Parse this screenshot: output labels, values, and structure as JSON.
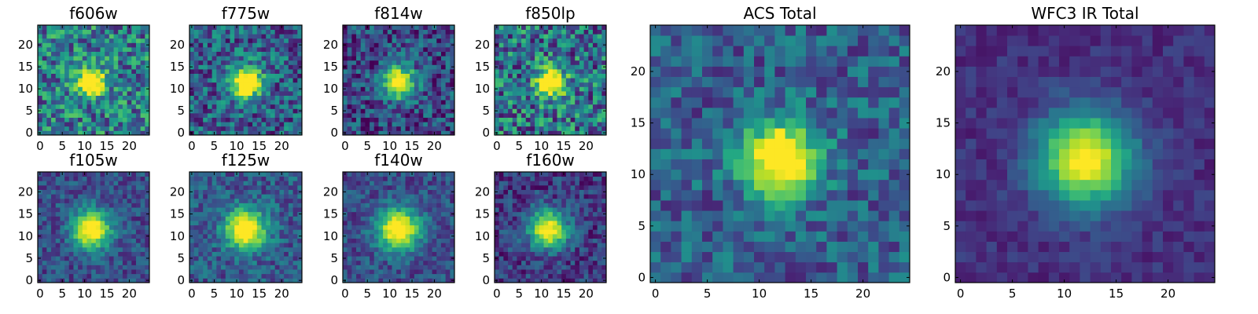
{
  "chart_data": [
    {
      "type": "heatmap",
      "title": "f606w",
      "xlim": [
        -0.5,
        24.5
      ],
      "ylim": [
        -0.5,
        24.5
      ],
      "xticks": [
        0,
        5,
        10,
        15,
        20
      ],
      "yticks": [
        0,
        5,
        10,
        15,
        20
      ],
      "xtick_labels": [
        "0",
        "5",
        "10",
        "15",
        "20"
      ],
      "ytick_labels": [
        "0",
        "5",
        "10",
        "15",
        "20"
      ],
      "colormap": "viridis",
      "peak_center": [
        11.5,
        11.5
      ],
      "peak_sigma": 2.2,
      "background_level": 0.42,
      "noise_level": 0.32
    },
    {
      "type": "heatmap",
      "title": "f775w",
      "xlim": [
        -0.5,
        24.5
      ],
      "ylim": [
        -0.5,
        24.5
      ],
      "xticks": [
        0,
        5,
        10,
        15,
        20
      ],
      "yticks": [
        0,
        5,
        10,
        15,
        20
      ],
      "xtick_labels": [
        "0",
        "5",
        "10",
        "15",
        "20"
      ],
      "ytick_labels": [
        "0",
        "5",
        "10",
        "15",
        "20"
      ],
      "colormap": "viridis",
      "peak_center": [
        12,
        11.5
      ],
      "peak_sigma": 2.6,
      "background_level": 0.3,
      "noise_level": 0.28
    },
    {
      "type": "heatmap",
      "title": "f814w",
      "xlim": [
        -0.5,
        24.5
      ],
      "ylim": [
        -0.5,
        24.5
      ],
      "xticks": [
        0,
        5,
        10,
        15,
        20
      ],
      "yticks": [
        0,
        5,
        10,
        15,
        20
      ],
      "xtick_labels": [
        "0",
        "5",
        "10",
        "15",
        "20"
      ],
      "ytick_labels": [
        "0",
        "5",
        "10",
        "15",
        "20"
      ],
      "colormap": "viridis",
      "peak_center": [
        12,
        11.5
      ],
      "peak_sigma": 2.6,
      "background_level": 0.22,
      "noise_level": 0.26
    },
    {
      "type": "heatmap",
      "title": "f850lp",
      "xlim": [
        -0.5,
        24.5
      ],
      "ylim": [
        -0.5,
        24.5
      ],
      "xticks": [
        0,
        5,
        10,
        15,
        20
      ],
      "yticks": [
        0,
        5,
        10,
        15,
        20
      ],
      "xtick_labels": [
        "0",
        "5",
        "10",
        "15",
        "20"
      ],
      "ytick_labels": [
        "0",
        "5",
        "10",
        "15",
        "20"
      ],
      "colormap": "viridis",
      "peak_center": [
        12,
        11.5
      ],
      "peak_sigma": 2.3,
      "background_level": 0.38,
      "noise_level": 0.34
    },
    {
      "type": "heatmap",
      "title": "f105w",
      "xlim": [
        -0.5,
        24.5
      ],
      "ylim": [
        -0.5,
        24.5
      ],
      "xticks": [
        0,
        5,
        10,
        15,
        20
      ],
      "yticks": [
        0,
        5,
        10,
        15,
        20
      ],
      "xtick_labels": [
        "0",
        "5",
        "10",
        "15",
        "20"
      ],
      "ytick_labels": [
        "0",
        "5",
        "10",
        "15",
        "20"
      ],
      "colormap": "viridis",
      "peak_center": [
        11.5,
        11.5
      ],
      "peak_sigma": 3.0,
      "background_level": 0.24,
      "noise_level": 0.16
    },
    {
      "type": "heatmap",
      "title": "f125w",
      "xlim": [
        -0.5,
        24.5
      ],
      "ylim": [
        -0.5,
        24.5
      ],
      "xticks": [
        0,
        5,
        10,
        15,
        20
      ],
      "yticks": [
        0,
        5,
        10,
        15,
        20
      ],
      "xtick_labels": [
        "0",
        "5",
        "10",
        "15",
        "20"
      ],
      "ytick_labels": [
        "0",
        "5",
        "10",
        "15",
        "20"
      ],
      "colormap": "viridis",
      "peak_center": [
        12,
        11.5
      ],
      "peak_sigma": 3.2,
      "background_level": 0.28,
      "noise_level": 0.18
    },
    {
      "type": "heatmap",
      "title": "f140w",
      "xlim": [
        -0.5,
        24.5
      ],
      "ylim": [
        -0.5,
        24.5
      ],
      "xticks": [
        0,
        5,
        10,
        15,
        20
      ],
      "yticks": [
        0,
        5,
        10,
        15,
        20
      ],
      "xtick_labels": [
        "0",
        "5",
        "10",
        "15",
        "20"
      ],
      "ytick_labels": [
        "0",
        "5",
        "10",
        "15",
        "20"
      ],
      "colormap": "viridis",
      "peak_center": [
        12,
        11.5
      ],
      "peak_sigma": 3.3,
      "background_level": 0.24,
      "noise_level": 0.16
    },
    {
      "type": "heatmap",
      "title": "f160w",
      "xlim": [
        -0.5,
        24.5
      ],
      "ylim": [
        -0.5,
        24.5
      ],
      "xticks": [
        0,
        5,
        10,
        15,
        20
      ],
      "yticks": [
        0,
        5,
        10,
        15,
        20
      ],
      "xtick_labels": [
        "0",
        "5",
        "10",
        "15",
        "20"
      ],
      "ytick_labels": [
        "0",
        "5",
        "10",
        "15",
        "20"
      ],
      "colormap": "viridis",
      "peak_center": [
        11.5,
        11.5
      ],
      "peak_sigma": 3.0,
      "background_level": 0.18,
      "noise_level": 0.18
    },
    {
      "type": "heatmap",
      "title": "ACS Total",
      "xlim": [
        -0.5,
        24.5
      ],
      "ylim": [
        -0.5,
        24.5
      ],
      "xticks": [
        0,
        5,
        10,
        15,
        20
      ],
      "yticks": [
        0,
        5,
        10,
        15,
        20
      ],
      "xtick_labels": [
        "0",
        "5",
        "10",
        "15",
        "20"
      ],
      "ytick_labels": [
        "0",
        "5",
        "10",
        "15",
        "20"
      ],
      "colormap": "viridis",
      "peak_center": [
        12,
        11.5
      ],
      "peak_sigma": 2.6,
      "background_level": 0.3,
      "noise_level": 0.2
    },
    {
      "type": "heatmap",
      "title": "WFC3 IR Total",
      "xlim": [
        -0.5,
        24.5
      ],
      "ylim": [
        -0.5,
        24.5
      ],
      "xticks": [
        0,
        5,
        10,
        15,
        20
      ],
      "yticks": [
        0,
        5,
        10,
        15,
        20
      ],
      "xtick_labels": [
        "0",
        "5",
        "10",
        "15",
        "20"
      ],
      "ytick_labels": [
        "0",
        "5",
        "10",
        "15",
        "20"
      ],
      "colormap": "viridis",
      "peak_center": [
        12,
        11.5
      ],
      "peak_sigma": 3.2,
      "background_level": 0.14,
      "noise_level": 0.08
    }
  ]
}
